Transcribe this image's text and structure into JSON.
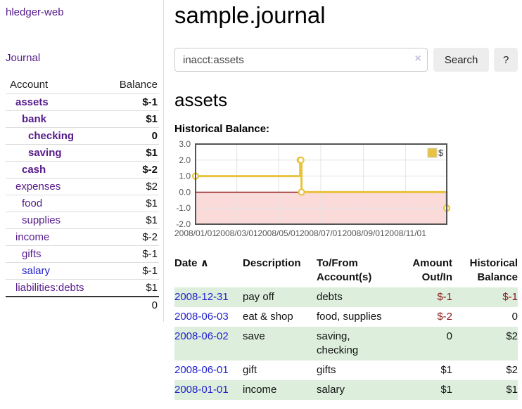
{
  "colors": {
    "purple": "#551a8b",
    "blue": "#2222cc",
    "neg_strong": "#8b1414",
    "neg_muted": "#bc6a6a",
    "gold": "#e8c33f",
    "pink_region": "#fbdada",
    "zero_line": "#871111",
    "row_green": "#ddeedd",
    "chart_border": "#545454"
  },
  "sidebar": {
    "brand": "hledger-web",
    "journal_link": "Journal",
    "accounts_table": {
      "headers": {
        "account": "Account",
        "balance": "Balance"
      },
      "rows": [
        {
          "name": "assets",
          "balance": "$-1",
          "indent": 0,
          "bold": true,
          "neg": "strong",
          "link": "purple"
        },
        {
          "name": "bank",
          "balance": "$1",
          "indent": 1,
          "bold": true,
          "neg": "none",
          "link": "purple"
        },
        {
          "name": "checking",
          "balance": "0",
          "indent": 2,
          "bold": true,
          "neg": "none",
          "link": "purple"
        },
        {
          "name": "saving",
          "balance": "$1",
          "indent": 2,
          "bold": true,
          "neg": "none",
          "link": "purple"
        },
        {
          "name": "cash",
          "balance": "$-2",
          "indent": 1,
          "bold": true,
          "neg": "strong",
          "link": "purple"
        },
        {
          "name": "expenses",
          "balance": "$2",
          "indent": 0,
          "bold": false,
          "neg": "none",
          "link": "purple"
        },
        {
          "name": "food",
          "balance": "$1",
          "indent": 1,
          "bold": false,
          "neg": "none",
          "link": "purple"
        },
        {
          "name": "supplies",
          "balance": "$1",
          "indent": 1,
          "bold": false,
          "neg": "none",
          "link": "purple"
        },
        {
          "name": "income",
          "balance": "$-2",
          "indent": 0,
          "bold": false,
          "neg": "muted",
          "link": "purple"
        },
        {
          "name": "gifts",
          "balance": "$-1",
          "indent": 1,
          "bold": false,
          "neg": "muted",
          "link": "purple"
        },
        {
          "name": "salary",
          "balance": "$-1",
          "indent": 1,
          "bold": false,
          "neg": "muted",
          "link": "blue"
        },
        {
          "name": "liabilities:debts",
          "balance": "$1",
          "indent": 0,
          "bold": false,
          "neg": "none",
          "link": "purple"
        }
      ],
      "total": "0"
    }
  },
  "header": {
    "title": "sample.journal"
  },
  "search": {
    "value": "inacct:assets",
    "clear_icon": "×",
    "button_label": "Search",
    "help_label": "?"
  },
  "account_page": {
    "title": "assets",
    "chart_label": "Historical Balance:"
  },
  "chart_data": {
    "type": "line",
    "step": true,
    "epoch": "2008-01-01",
    "xlim_days": [
      0,
      365
    ],
    "ylim": [
      -2,
      3
    ],
    "y_ticks": [
      3.0,
      2.0,
      1.0,
      0.0,
      -1.0,
      -2.0
    ],
    "x_ticks": [
      "2008/01/01",
      "2008/03/01",
      "2008/05/01",
      "2008/07/01",
      "2008/09/01",
      "2008/11/01"
    ],
    "grid": true,
    "negative_fill": "#fbdada",
    "zero_line_color": "#871111",
    "border_color": "#545454",
    "legend": {
      "label": "$",
      "position": "top-right"
    },
    "series": [
      {
        "name": "$",
        "color": "#e8c33f",
        "points": [
          [
            "2008-01-01",
            1
          ],
          [
            "2008-06-01",
            2
          ],
          [
            "2008-06-02",
            2
          ],
          [
            "2008-06-03",
            0
          ],
          [
            "2008-12-31",
            -1
          ]
        ]
      }
    ]
  },
  "register_table": {
    "headers": {
      "date": "Date",
      "sort_indicator": "∧",
      "description": "Description",
      "accounts": "To/From Account(s)",
      "amount": "Amount Out/In",
      "balance": "Historical Balance"
    },
    "rows": [
      {
        "date": "2008-12-31",
        "description": "pay off",
        "accounts": "debts",
        "amount": "$-1",
        "balance": "$-1",
        "amount_neg": true,
        "balance_neg": true,
        "shaded": true
      },
      {
        "date": "2008-06-03",
        "description": "eat & shop",
        "accounts": "food, supplies",
        "amount": "$-2",
        "balance": "0",
        "amount_neg": true,
        "balance_neg": false,
        "shaded": false
      },
      {
        "date": "2008-06-02",
        "description": "save",
        "accounts": "saving, checking",
        "amount": "0",
        "balance": "$2",
        "amount_neg": false,
        "balance_neg": false,
        "shaded": true
      },
      {
        "date": "2008-06-01",
        "description": "gift",
        "accounts": "gifts",
        "amount": "$1",
        "balance": "$2",
        "amount_neg": false,
        "balance_neg": false,
        "shaded": false
      },
      {
        "date": "2008-01-01",
        "description": "income",
        "accounts": "salary",
        "amount": "$1",
        "balance": "$1",
        "amount_neg": false,
        "balance_neg": false,
        "shaded": true
      }
    ]
  }
}
